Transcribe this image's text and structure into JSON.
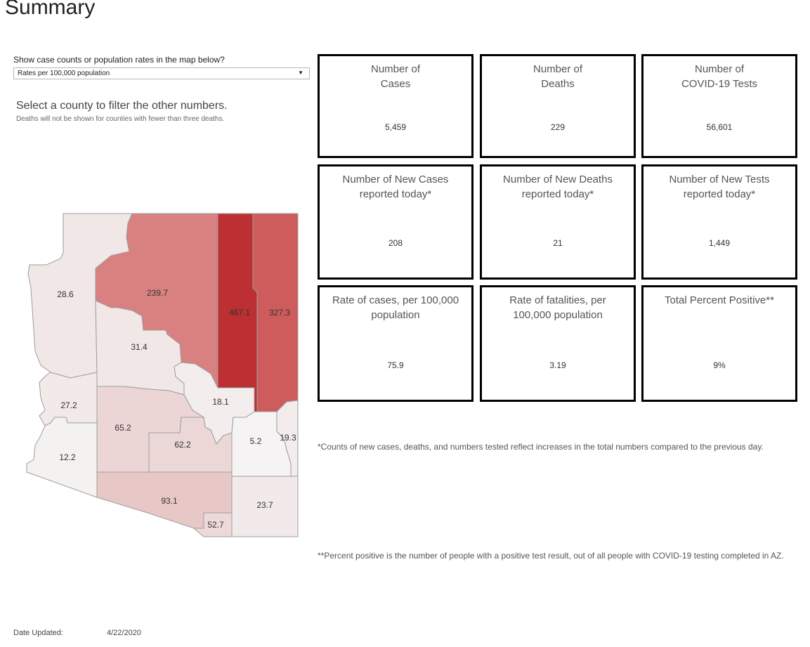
{
  "title": "Summary",
  "selector": {
    "label": "Show case counts or population rates in the map below?",
    "value": "Rates per 100,000 population"
  },
  "instructions": {
    "main": "Select a county to filter the other numbers.",
    "note": "Deaths will not be shown for counties with fewer than three deaths."
  },
  "cards": [
    {
      "label": "Number of\nCases",
      "value": "5,459"
    },
    {
      "label": "Number of\nDeaths",
      "value": "229"
    },
    {
      "label": "Number of\nCOVID-19 Tests",
      "value": "56,601"
    },
    {
      "label": "Number of New Cases\nreported today*",
      "value": "208"
    },
    {
      "label": "Number of New Deaths\nreported today*",
      "value": "21"
    },
    {
      "label": "Number of New Tests\nreported today*",
      "value": "1,449"
    },
    {
      "label": "Rate of cases, per 100,000\npopulation",
      "value": "75.9"
    },
    {
      "label": "Rate of fatalities, per\n100,000 population",
      "value": "3.19"
    },
    {
      "label": "Total Percent Positive**",
      "value": "9%"
    }
  ],
  "footnotes": [
    "*Counts of new cases, deaths, and numbers tested reflect increases in the total numbers compared to the previous day.",
    "**Percent positive is the number of people with a positive test result, out of all people with COVID-19 testing completed in AZ."
  ],
  "date_updated": {
    "label": "Date Updated:",
    "value": "4/22/2020"
  },
  "map": {
    "counties": [
      {
        "id": "mohave",
        "rate": "28.6",
        "color": "#f1e7e7"
      },
      {
        "id": "coconino",
        "rate": "239.7",
        "color": "#d98080"
      },
      {
        "id": "navajo",
        "rate": "467.1",
        "color": "#bc2f32"
      },
      {
        "id": "apache",
        "rate": "327.3",
        "color": "#cf5c5c"
      },
      {
        "id": "yavapai",
        "rate": "31.4",
        "color": "#f1e7e7"
      },
      {
        "id": "la-paz",
        "rate": "27.2",
        "color": "#f2e9e9"
      },
      {
        "id": "gila",
        "rate": "18.1",
        "color": "#f3eded"
      },
      {
        "id": "maricopa",
        "rate": "65.2",
        "color": "#ecd5d5"
      },
      {
        "id": "pinal",
        "rate": "62.2",
        "color": "#ecd7d7"
      },
      {
        "id": "yuma",
        "rate": "12.2",
        "color": "#f4f1f1"
      },
      {
        "id": "graham",
        "rate": "5.2",
        "color": "#f5f3f3"
      },
      {
        "id": "greenlee",
        "rate": "19.3",
        "color": "#f3ecec"
      },
      {
        "id": "pima",
        "rate": "93.1",
        "color": "#e8c7c7"
      },
      {
        "id": "santa-cruz",
        "rate": "52.7",
        "color": "#edd9d9"
      },
      {
        "id": "cochise",
        "rate": "23.7",
        "color": "#f2eaea"
      }
    ]
  }
}
